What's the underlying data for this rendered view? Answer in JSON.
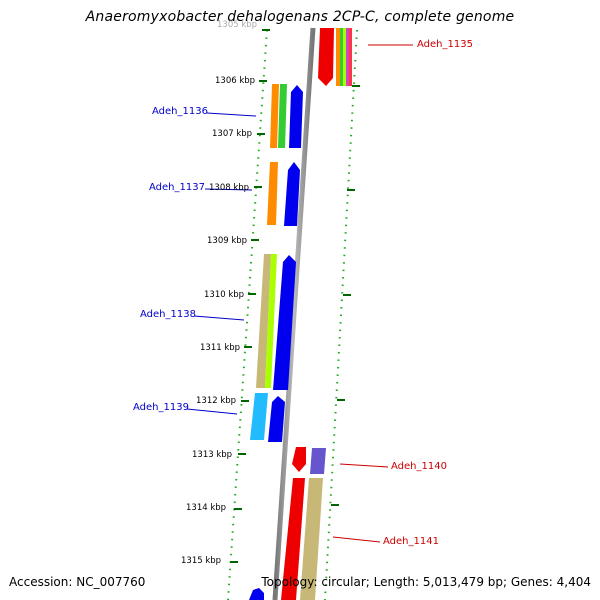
{
  "title": "Anaeromyxobacter dehalogenans 2CP-C, complete genome",
  "footer": {
    "accession": "Accession: NC_007760",
    "stats": "Topology: circular; Length: 5,013,479 bp; Genes: 4,404"
  },
  "kbp_ticks": [
    "1305 kbp",
    "1306 kbp",
    "1307 kbp",
    "1308 kbp",
    "1309 kbp",
    "1310 kbp",
    "1311 kbp",
    "1312 kbp",
    "1313 kbp",
    "1314 kbp",
    "1315 kbp"
  ],
  "genes_left": [
    "Adeh_1136",
    "Adeh_1137",
    "Adeh_1138",
    "Adeh_1139"
  ],
  "genes_right": [
    "Adeh_1135",
    "Adeh_1140",
    "Adeh_1141"
  ],
  "colors": {
    "gene_label_left": "#0000cc",
    "gene_label_right": "#cc0000",
    "strand_forward": "#0000ee",
    "strand_reverse": "#ee0000",
    "tick_dots": "#22aa22",
    "axis_gray": "#888888",
    "orange": "#ff8c00",
    "green": "#33cc33",
    "khaki": "#c8b878",
    "lime": "#aaff00",
    "cyan": "#22bbff",
    "purple": "#6655cc"
  }
}
